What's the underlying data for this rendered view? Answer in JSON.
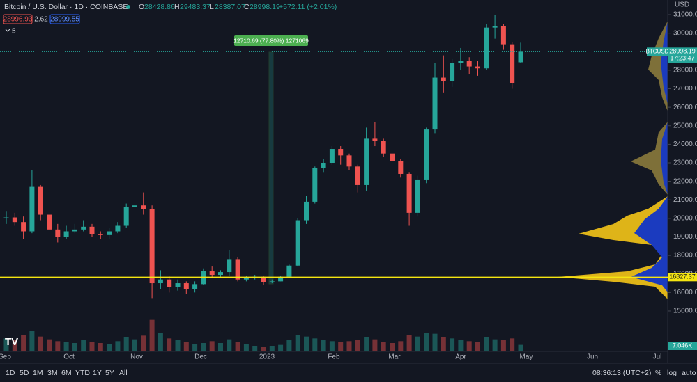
{
  "chart_data": {
    "type": "candlestick",
    "title": "Bitcoin / U.S. Dollar · 1D · COINBASE",
    "ohlc_labels": [
      "O",
      "H",
      "L",
      "C"
    ],
    "change": "+572.11 (+2.01%)",
    "bid": 28996.93,
    "spread": 2.62,
    "ask": 28999.55,
    "indicators": 5,
    "currency": "USD",
    "symbol": "BTCUSD",
    "countdown": "17:23:47",
    "price_line": 16827.37,
    "measure_label": "12710.69 (77.80%) 1271069",
    "x_labels": [
      "Sep",
      "Oct",
      "Nov",
      "Dec",
      "2023",
      "Feb",
      "Mar",
      "Apr",
      "May",
      "Jun",
      "Jul"
    ],
    "open": [
      20000,
      20050,
      19800,
      19300,
      21700,
      20200,
      19400,
      19000,
      19300,
      19400,
      19550,
      19150,
      19100,
      19300,
      19600,
      20600,
      20700,
      20500,
      16500,
      16700,
      16300,
      16500,
      16200,
      16450,
      17150,
      16950,
      17100,
      17800,
      16700,
      16800,
      16850,
      16550,
      16600,
      16850,
      17450,
      19900,
      20900,
      22700,
      23000,
      23750,
      23400,
      22800,
      21800,
      24300,
      24200,
      23500,
      23100,
      22400,
      20300,
      22100,
      24800,
      27600,
      27400,
      28400,
      28500,
      28200,
      28100,
      30300,
      30400,
      29400,
      28428.86
    ],
    "high": [
      20400,
      20300,
      20100,
      22600,
      21800,
      20400,
      19700,
      19600,
      19700,
      19900,
      19700,
      19300,
      19500,
      19800,
      20800,
      21000,
      21400,
      20700,
      17200,
      16900,
      16700,
      16600,
      16600,
      17300,
      17400,
      17200,
      18300,
      17900,
      16900,
      16950,
      16900,
      16700,
      16900,
      17500,
      20000,
      21200,
      22800,
      23200,
      23900,
      23900,
      23500,
      22900,
      24900,
      25200,
      24300,
      23700,
      23200,
      22500,
      22300,
      24900,
      28400,
      28800,
      28600,
      29200,
      28700,
      28500,
      30500,
      31000,
      30500,
      29500,
      29483.37
    ],
    "low": [
      19700,
      19600,
      18900,
      19200,
      19900,
      19100,
      18700,
      18900,
      19200,
      19300,
      19000,
      18900,
      18900,
      19200,
      19500,
      20300,
      20200,
      15700,
      16200,
      16000,
      16100,
      15900,
      16000,
      16400,
      16800,
      16800,
      16900,
      16600,
      16600,
      16700,
      16400,
      16500,
      16600,
      16800,
      17400,
      19700,
      20800,
      22500,
      22900,
      22900,
      22600,
      21400,
      21500,
      23900,
      23300,
      22900,
      22200,
      19600,
      20100,
      21900,
      24600,
      26800,
      27100,
      28000,
      27800,
      27700,
      28000,
      29700,
      29100,
      27000,
      28387.07
    ],
    "close": [
      20050,
      19800,
      19300,
      21700,
      20200,
      19400,
      19000,
      19300,
      19400,
      19550,
      19150,
      19100,
      19300,
      19600,
      20600,
      20700,
      20500,
      16500,
      16700,
      16300,
      16500,
      16200,
      16450,
      17150,
      16950,
      17100,
      17800,
      16700,
      16800,
      16850,
      16550,
      16600,
      16850,
      17450,
      19900,
      20900,
      22700,
      23000,
      23750,
      23400,
      22800,
      21800,
      24300,
      24200,
      23500,
      23100,
      22400,
      20300,
      22100,
      24800,
      27600,
      27400,
      28400,
      28500,
      28200,
      28100,
      30300,
      30400,
      29400,
      27300,
      28998.19
    ],
    "volume": [
      14,
      12,
      18,
      22,
      16,
      13,
      11,
      10,
      9,
      12,
      10,
      9,
      8,
      11,
      15,
      13,
      17,
      34,
      20,
      14,
      12,
      10,
      8,
      9,
      11,
      9,
      13,
      10,
      8,
      6,
      5,
      6,
      7,
      12,
      18,
      16,
      14,
      12,
      11,
      10,
      11,
      12,
      15,
      13,
      10,
      9,
      11,
      18,
      16,
      20,
      19,
      15,
      14,
      12,
      11,
      10,
      15,
      13,
      12,
      14,
      7.046
    ],
    "volume_label": "7.046K",
    "vlim": [
      0,
      45
    ],
    "ylim": [
      12820,
      31790
    ],
    "yticks": [
      {
        "value": 15000,
        "label": "15000.00"
      },
      {
        "value": 16000,
        "label": "16000.00"
      },
      {
        "value": 17000,
        "label": "17000.00"
      },
      {
        "value": 18000,
        "label": "18000.00"
      },
      {
        "value": 19000,
        "label": "19000.00"
      },
      {
        "value": 20000,
        "label": "20000.00"
      },
      {
        "value": 21000,
        "label": "21000.00"
      },
      {
        "value": 22000,
        "label": "22000.00"
      },
      {
        "value": 23000,
        "label": "23000.00"
      },
      {
        "value": 24000,
        "label": "24000.00"
      },
      {
        "value": 25000,
        "label": "25000.00"
      },
      {
        "value": 26000,
        "label": "26000.00"
      },
      {
        "value": 27000,
        "label": "27000.00"
      },
      {
        "value": 28000,
        "label": "28000.00"
      },
      {
        "value": 29000,
        "label": "29000.00"
      },
      {
        "value": 30000,
        "label": "30000.00"
      },
      {
        "value": 31000,
        "label": "31000.00"
      }
    ],
    "up_color": "#26a69a",
    "down_color": "#ef5350",
    "toolbar": [
      "1D",
      "5D",
      "1M",
      "3M",
      "6M",
      "YTD",
      "1Y",
      "5Y",
      "All"
    ],
    "clock": "08:36:13 (UTC+2)",
    "scale_buttons": [
      "%",
      "log",
      "auto"
    ]
  }
}
